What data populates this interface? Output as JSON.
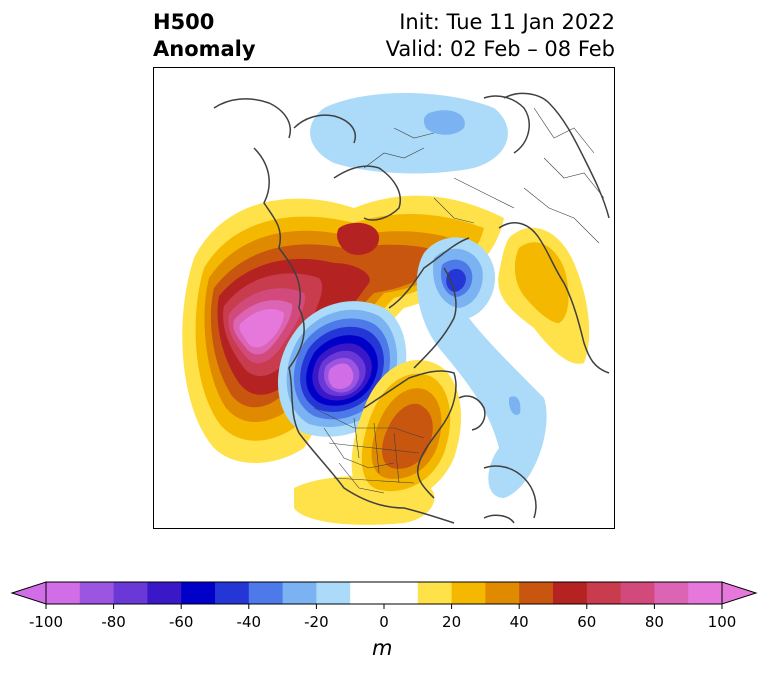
{
  "header": {
    "title_line1": "H500",
    "title_line2": "Anomaly",
    "init_label": "Init: Tue 11 Jan 2022",
    "valid_label": "Valid: 02 Feb – 08 Feb"
  },
  "colorbar": {
    "units": "m",
    "ticks": [
      "-100",
      "-80",
      "-60",
      "-40",
      "-20",
      "0",
      "20",
      "40",
      "60",
      "80",
      "100"
    ],
    "levels": [
      -100,
      -90,
      -80,
      -70,
      -60,
      -50,
      -40,
      -30,
      -20,
      -10,
      10,
      20,
      30,
      40,
      50,
      60,
      70,
      80,
      90,
      100
    ],
    "colors": [
      "#d16de6",
      "#9b55e0",
      "#6a38d6",
      "#3a18c8",
      "#0000c8",
      "#2436d6",
      "#4d7ae8",
      "#7ab2f2",
      "#abdbf8",
      "#ffffff",
      "#ffe14a",
      "#f4b800",
      "#e08a00",
      "#c8560e",
      "#b42222",
      "#c83c4e",
      "#d24a7c",
      "#dc64b4",
      "#e678dc"
    ],
    "under_color": "#d16de6",
    "over_color": "#e678dc"
  },
  "map": {
    "projection": "north-polar-stereographic",
    "features": [
      "coastlines",
      "country-borders",
      "us-state-borders"
    ]
  }
}
